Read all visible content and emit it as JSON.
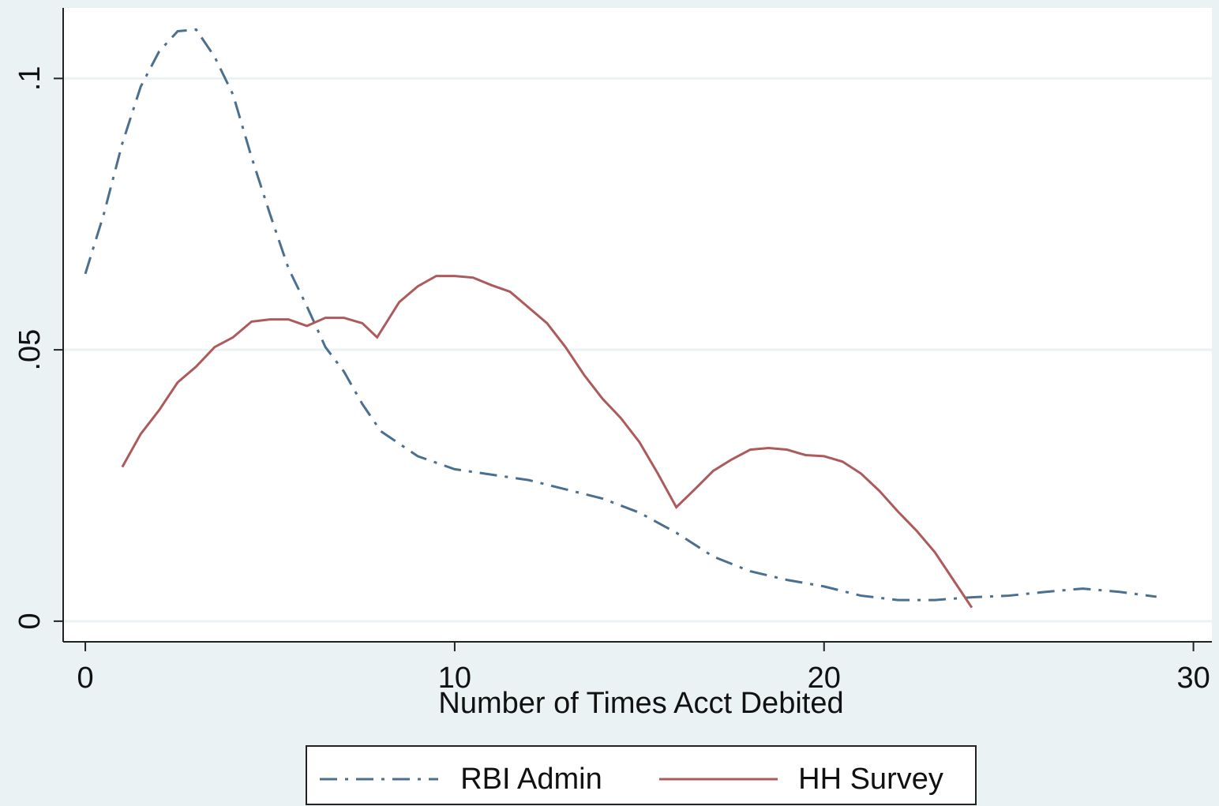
{
  "chart_data": {
    "type": "line",
    "xlabel": "Number of Times Acct Debited",
    "xlim": [
      -0.6,
      30.5
    ],
    "xticks": [
      0,
      10,
      20,
      30
    ],
    "ylim": [
      -0.0038,
      0.113
    ],
    "yticks": [
      0,
      {
        "value": 0.05,
        "label": ".05"
      },
      {
        "value": 0.1,
        "label": ".1"
      }
    ],
    "grid": true,
    "legend": "bottom",
    "series": [
      {
        "name": "RBI Admin",
        "color": "#4a6f8f",
        "linestyle": "dashdot",
        "x": [
          0,
          0.5,
          1,
          1.5,
          2,
          2.5,
          3,
          3.5,
          4,
          4.5,
          5,
          5.5,
          6,
          6.5,
          7,
          7.5,
          8,
          9,
          10,
          11,
          12,
          13,
          14,
          15,
          16,
          17,
          18,
          19,
          20,
          21,
          22,
          23,
          24,
          25,
          26,
          27,
          28,
          29
        ],
        "values": [
          0.064,
          0.075,
          0.088,
          0.0985,
          0.105,
          0.1087,
          0.109,
          0.104,
          0.097,
          0.0855,
          0.075,
          0.065,
          0.058,
          0.0505,
          0.046,
          0.04,
          0.035,
          0.0304,
          0.028,
          0.027,
          0.026,
          0.0243,
          0.0226,
          0.02,
          0.0163,
          0.0119,
          0.0092,
          0.0076,
          0.0064,
          0.0047,
          0.0039,
          0.0039,
          0.0044,
          0.0047,
          0.0054,
          0.006,
          0.0054,
          0.0045
        ]
      },
      {
        "name": "HH Survey",
        "color": "#ad5a5c",
        "linestyle": "solid",
        "x": [
          1,
          1.5,
          2,
          2.5,
          3,
          3.5,
          4,
          4.5,
          5,
          5.5,
          6,
          6.5,
          7,
          7.5,
          7.9,
          8.5,
          9,
          9.5,
          10,
          10.5,
          11,
          11.5,
          12,
          12.5,
          13,
          13.5,
          14,
          14.5,
          15,
          15.5,
          16,
          16.5,
          17,
          17.5,
          18,
          18.5,
          19,
          19.5,
          20,
          20.5,
          21,
          21.5,
          22,
          22.5,
          23,
          23.5,
          24
        ],
        "values": [
          0.0284,
          0.0345,
          0.0389,
          0.044,
          0.0469,
          0.0505,
          0.0523,
          0.0552,
          0.0556,
          0.0556,
          0.0544,
          0.0559,
          0.0559,
          0.0549,
          0.0523,
          0.0588,
          0.0617,
          0.0636,
          0.0636,
          0.0633,
          0.0619,
          0.0607,
          0.0578,
          0.0549,
          0.0505,
          0.0454,
          0.041,
          0.0374,
          0.033,
          0.0272,
          0.021,
          0.0243,
          0.0277,
          0.0298,
          0.0316,
          0.0319,
          0.0316,
          0.0306,
          0.0304,
          0.0294,
          0.0272,
          0.024,
          0.0202,
          0.0167,
          0.0127,
          0.0076,
          0.0025
        ]
      }
    ]
  }
}
